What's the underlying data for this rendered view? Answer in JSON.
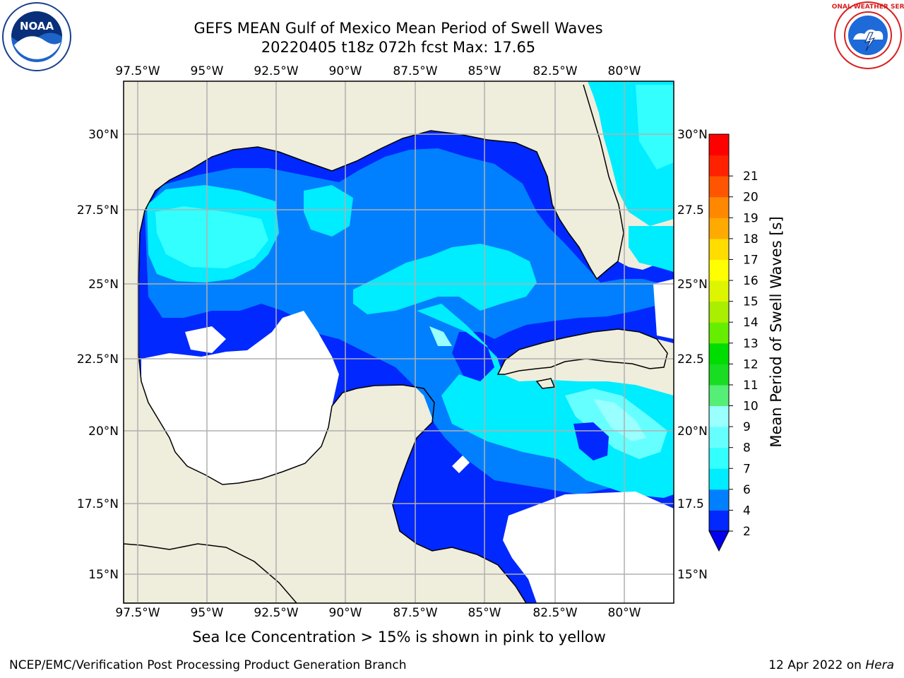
{
  "header": {
    "title_line1": "GEFS MEAN Gulf of Mexico Mean Period of Swell Waves",
    "title_line2": "20220405 t18z 072h fcst   Max: 17.65"
  },
  "logos": {
    "left": {
      "icon": "noaa-logo-icon",
      "text": "NOAA"
    },
    "right": {
      "icon": "national-weather-service-logo-icon",
      "ring_text": "NATIONAL WEATHER SERVICE"
    }
  },
  "map": {
    "lon_labels": [
      "97.5°W",
      "95°W",
      "92.5°W",
      "90°W",
      "87.5°W",
      "85°W",
      "82.5°W",
      "80°W"
    ],
    "lat_labels_left": [
      "30°N",
      "27.5°N",
      "25°N",
      "22.5°N",
      "20°N",
      "17.5°N",
      "15°N"
    ],
    "lat_labels_right": [
      "30°N",
      "27.5",
      "25°N",
      "22.5",
      "20°N",
      "17.5",
      "15°N"
    ],
    "colors": {
      "land": "#efeddc",
      "ocean_mask": "#ffffff",
      "gridline": "#b0b0b0",
      "coast": "#000000"
    }
  },
  "colorbar": {
    "label": "Mean Period of Swell Waves [s]",
    "ticks": [
      "2",
      "4",
      "6",
      "7",
      "8",
      "9",
      "10",
      "11",
      "12",
      "13",
      "14",
      "15",
      "16",
      "17",
      "18",
      "19",
      "20",
      "21"
    ],
    "colors": [
      "#0028ff",
      "#0080ff",
      "#00ecff",
      "#33ffff",
      "#66ffff",
      "#99ffff",
      "#55ee77",
      "#19dd22",
      "#00dd00",
      "#66ee00",
      "#aaee00",
      "#ddf500",
      "#ffff00",
      "#ffdd00",
      "#ffaa00",
      "#ff8800",
      "#ff5500",
      "#ff2200",
      "#ff0000"
    ],
    "extend_color": "#0000ee"
  },
  "caption": "Sea Ice Concentration > 15% is shown in pink to yellow",
  "footer": {
    "left": "NCEP/EMC/Verification Post Processing Product Generation Branch",
    "right_prefix": "12 Apr 2022 on ",
    "right_host": "Hera"
  }
}
